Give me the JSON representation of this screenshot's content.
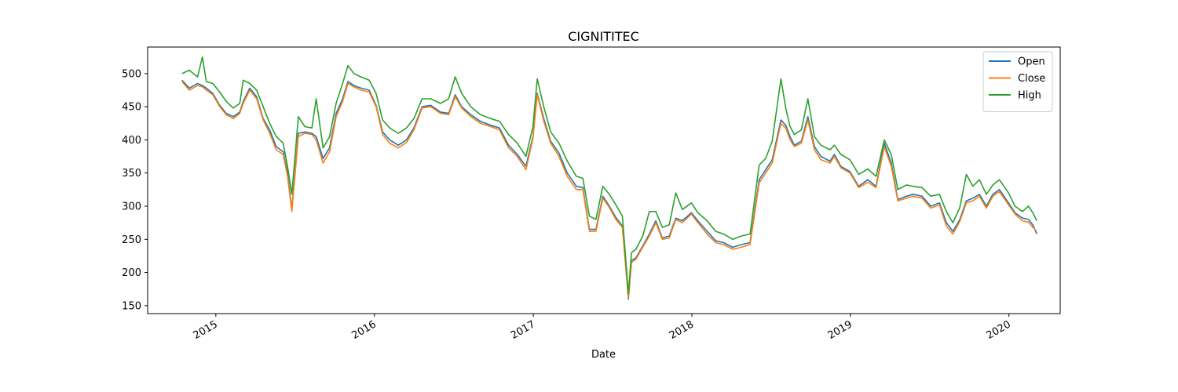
{
  "chart_data": {
    "type": "line",
    "title": "CIGNITITEC",
    "xlabel": "Date",
    "ylabel": "",
    "xlim": [
      "2014-07-28",
      "2020-04-28"
    ],
    "ylim": [
      138,
      540
    ],
    "x_tick_labels": [
      "2015",
      "2016",
      "2017",
      "2018",
      "2019",
      "2020"
    ],
    "x_ticks": [
      "2015-01-01",
      "2016-01-01",
      "2017-01-01",
      "2018-01-01",
      "2019-01-01",
      "2020-01-01"
    ],
    "y_ticks": [
      150,
      200,
      250,
      300,
      350,
      400,
      450,
      500
    ],
    "grid": false,
    "legend_position": "top-right",
    "x": [
      "2014-10-15",
      "2014-11-01",
      "2014-11-20",
      "2014-12-01",
      "2014-12-10",
      "2014-12-25",
      "2015-01-10",
      "2015-01-25",
      "2015-02-10",
      "2015-02-25",
      "2015-03-05",
      "2015-03-20",
      "2015-04-05",
      "2015-04-20",
      "2015-05-05",
      "2015-05-20",
      "2015-06-05",
      "2015-06-15",
      "2015-06-25",
      "2015-07-10",
      "2015-07-25",
      "2015-08-10",
      "2015-08-20",
      "2015-09-05",
      "2015-09-20",
      "2015-10-05",
      "2015-10-20",
      "2015-11-01",
      "2015-11-15",
      "2015-12-01",
      "2015-12-20",
      "2016-01-05",
      "2016-01-20",
      "2016-02-05",
      "2016-02-25",
      "2016-03-15",
      "2016-04-01",
      "2016-04-20",
      "2016-05-10",
      "2016-06-01",
      "2016-06-20",
      "2016-07-05",
      "2016-07-20",
      "2016-08-10",
      "2016-09-01",
      "2016-09-25",
      "2016-10-15",
      "2016-11-05",
      "2016-11-25",
      "2016-12-15",
      "2016-12-31",
      "2017-01-10",
      "2017-01-25",
      "2017-02-10",
      "2017-03-01",
      "2017-03-20",
      "2017-04-10",
      "2017-04-25",
      "2017-05-10",
      "2017-05-25",
      "2017-06-10",
      "2017-06-25",
      "2017-07-10",
      "2017-07-25",
      "2017-08-08",
      "2017-08-15",
      "2017-08-25",
      "2017-09-10",
      "2017-09-25",
      "2017-10-10",
      "2017-10-25",
      "2017-11-10",
      "2017-11-25",
      "2017-12-10",
      "2017-12-31",
      "2018-01-15",
      "2018-02-05",
      "2018-02-25",
      "2018-03-15",
      "2018-04-05",
      "2018-04-25",
      "2018-05-15",
      "2018-06-05",
      "2018-06-20",
      "2018-07-05",
      "2018-07-25",
      "2018-08-05",
      "2018-08-15",
      "2018-08-25",
      "2018-09-10",
      "2018-09-25",
      "2018-10-10",
      "2018-10-25",
      "2018-11-15",
      "2018-11-25",
      "2018-12-10",
      "2018-12-31",
      "2019-01-20",
      "2019-02-10",
      "2019-03-01",
      "2019-03-20",
      "2019-04-05",
      "2019-04-20",
      "2019-05-10",
      "2019-05-25",
      "2019-06-15",
      "2019-07-05",
      "2019-07-25",
      "2019-08-10",
      "2019-08-25",
      "2019-09-10",
      "2019-09-25",
      "2019-10-10",
      "2019-10-25",
      "2019-11-10",
      "2019-11-25",
      "2019-12-10",
      "2019-12-31",
      "2020-01-15",
      "2020-02-01",
      "2020-02-15",
      "2020-02-25",
      "2020-03-05"
    ],
    "series": [
      {
        "name": "Open",
        "color": "#1f77b4",
        "values": [
          490,
          478,
          485,
          482,
          478,
          470,
          452,
          440,
          435,
          442,
          458,
          478,
          465,
          432,
          415,
          390,
          382,
          350,
          295,
          410,
          412,
          410,
          405,
          372,
          388,
          440,
          462,
          488,
          482,
          478,
          475,
          452,
          412,
          400,
          392,
          400,
          418,
          450,
          452,
          442,
          440,
          468,
          450,
          438,
          428,
          422,
          418,
          392,
          378,
          360,
          405,
          470,
          432,
          398,
          380,
          350,
          330,
          328,
          265,
          265,
          315,
          300,
          283,
          270,
          160,
          218,
          222,
          240,
          258,
          278,
          252,
          255,
          282,
          278,
          290,
          278,
          262,
          248,
          245,
          238,
          242,
          245,
          340,
          355,
          370,
          430,
          422,
          405,
          392,
          398,
          435,
          390,
          375,
          368,
          378,
          360,
          352,
          330,
          340,
          330,
          395,
          365,
          310,
          315,
          318,
          315,
          300,
          305,
          275,
          262,
          280,
          308,
          312,
          318,
          300,
          318,
          325,
          305,
          290,
          282,
          280,
          272,
          258
        ]
      },
      {
        "name": "Close",
        "color": "#ff7f0e",
        "values": [
          488,
          475,
          482,
          480,
          475,
          468,
          450,
          438,
          432,
          440,
          455,
          475,
          462,
          430,
          410,
          385,
          378,
          345,
          292,
          405,
          410,
          408,
          400,
          365,
          382,
          435,
          458,
          485,
          480,
          475,
          472,
          450,
          408,
          395,
          388,
          396,
          415,
          448,
          450,
          440,
          438,
          465,
          448,
          435,
          425,
          420,
          415,
          388,
          375,
          355,
          402,
          468,
          428,
          395,
          375,
          345,
          325,
          325,
          262,
          262,
          312,
          298,
          280,
          268,
          162,
          215,
          220,
          238,
          255,
          275,
          250,
          252,
          280,
          275,
          288,
          275,
          258,
          245,
          242,
          235,
          238,
          242,
          335,
          350,
          365,
          425,
          418,
          400,
          390,
          395,
          430,
          385,
          370,
          365,
          375,
          358,
          350,
          328,
          336,
          328,
          390,
          360,
          308,
          312,
          315,
          312,
          297,
          302,
          270,
          258,
          277,
          305,
          308,
          315,
          297,
          315,
          322,
          302,
          288,
          278,
          276,
          268,
          262
        ]
      },
      {
        "name": "High",
        "color": "#2ca02c",
        "values": [
          500,
          505,
          495,
          525,
          488,
          485,
          472,
          458,
          448,
          455,
          490,
          485,
          475,
          450,
          425,
          405,
          395,
          360,
          318,
          435,
          420,
          418,
          462,
          388,
          405,
          455,
          485,
          512,
          500,
          495,
          490,
          470,
          430,
          418,
          410,
          418,
          432,
          462,
          462,
          455,
          462,
          495,
          470,
          450,
          438,
          432,
          428,
          408,
          395,
          375,
          420,
          492,
          450,
          412,
          395,
          368,
          345,
          342,
          285,
          280,
          330,
          318,
          302,
          285,
          168,
          230,
          235,
          255,
          292,
          292,
          268,
          272,
          320,
          295,
          305,
          290,
          278,
          262,
          258,
          250,
          255,
          258,
          362,
          372,
          398,
          492,
          448,
          420,
          408,
          415,
          462,
          405,
          392,
          385,
          392,
          378,
          370,
          348,
          356,
          345,
          400,
          378,
          325,
          332,
          330,
          328,
          315,
          318,
          292,
          275,
          298,
          348,
          330,
          340,
          318,
          332,
          340,
          320,
          300,
          292,
          300,
          290,
          278
        ]
      }
    ]
  }
}
